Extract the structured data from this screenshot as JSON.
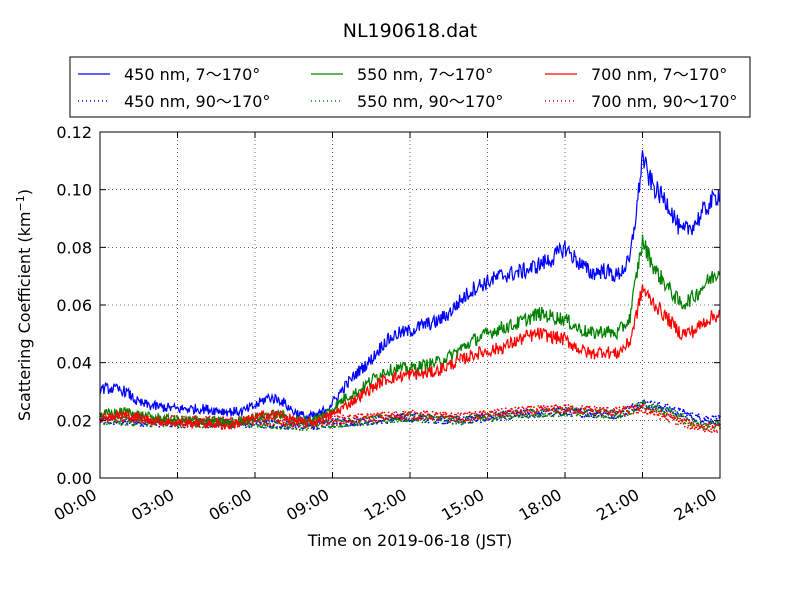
{
  "chart_data": {
    "type": "line",
    "title": "NL190618.dat",
    "xlabel": "Time on 2019-06-18 (JST)",
    "ylabel_main": "Scattering Coefficient (km",
    "ylabel_sup": "−1",
    "ylabel_close": ")",
    "xlim": [
      0,
      24
    ],
    "ylim": [
      0,
      0.12
    ],
    "x_ticks": [
      {
        "value": 0,
        "label": "00:00"
      },
      {
        "value": 3,
        "label": "03:00"
      },
      {
        "value": 6,
        "label": "06:00"
      },
      {
        "value": 9,
        "label": "09:00"
      },
      {
        "value": 12,
        "label": "12:00"
      },
      {
        "value": 15,
        "label": "15:00"
      },
      {
        "value": 18,
        "label": "18:00"
      },
      {
        "value": 21,
        "label": "21:00"
      },
      {
        "value": 24,
        "label": "24:00"
      }
    ],
    "y_ticks": [
      {
        "value": 0,
        "label": "0.00"
      },
      {
        "value": 0.02,
        "label": "0.02"
      },
      {
        "value": 0.04,
        "label": "0.04"
      },
      {
        "value": 0.06,
        "label": "0.06"
      },
      {
        "value": 0.08,
        "label": "0.08"
      },
      {
        "value": 0.1,
        "label": "0.10"
      },
      {
        "value": 0.12,
        "label": "0.12"
      }
    ],
    "grid": true,
    "legend_position": "top",
    "series": [
      {
        "name": "450 nm, 7～170°",
        "color": "#0000ff",
        "style": "solid",
        "x": [
          0,
          0.5,
          1,
          1.5,
          2,
          3,
          4,
          5,
          5.5,
          6,
          6.5,
          7,
          7.5,
          8,
          8.5,
          9,
          9.5,
          10,
          10.5,
          11,
          11.5,
          12,
          12.5,
          13,
          13.5,
          14,
          14.5,
          15,
          15.5,
          16,
          16.5,
          17,
          17.5,
          18,
          18.5,
          19,
          19.5,
          20,
          20.5,
          20.8,
          21,
          21.2,
          21.5,
          22,
          22.5,
          23,
          23.5,
          24
        ],
        "y": [
          0.031,
          0.031,
          0.03,
          0.026,
          0.025,
          0.024,
          0.024,
          0.023,
          0.023,
          0.025,
          0.028,
          0.027,
          0.023,
          0.021,
          0.022,
          0.026,
          0.032,
          0.037,
          0.041,
          0.047,
          0.05,
          0.051,
          0.053,
          0.054,
          0.057,
          0.062,
          0.066,
          0.068,
          0.07,
          0.071,
          0.072,
          0.074,
          0.076,
          0.08,
          0.075,
          0.071,
          0.072,
          0.07,
          0.075,
          0.095,
          0.112,
          0.105,
          0.1,
          0.095,
          0.085,
          0.088,
          0.094,
          0.099
        ]
      },
      {
        "name": "550 nm, 7～170°",
        "color": "#008000",
        "style": "solid",
        "x": [
          0,
          1,
          2,
          3,
          4,
          5,
          6,
          6.5,
          7,
          7.5,
          8,
          8.5,
          9,
          9.5,
          10,
          10.5,
          11,
          11.5,
          12,
          12.5,
          13,
          13.5,
          14,
          14.5,
          15,
          15.5,
          16,
          16.5,
          17,
          17.5,
          18,
          18.5,
          19,
          19.5,
          20,
          20.5,
          20.8,
          21,
          21.2,
          21.5,
          22,
          22.5,
          23,
          23.5,
          24
        ],
        "y": [
          0.022,
          0.023,
          0.021,
          0.02,
          0.02,
          0.019,
          0.021,
          0.022,
          0.022,
          0.02,
          0.02,
          0.021,
          0.024,
          0.028,
          0.03,
          0.034,
          0.037,
          0.038,
          0.038,
          0.039,
          0.04,
          0.042,
          0.045,
          0.048,
          0.05,
          0.052,
          0.053,
          0.055,
          0.057,
          0.056,
          0.055,
          0.052,
          0.05,
          0.051,
          0.05,
          0.055,
          0.072,
          0.082,
          0.078,
          0.072,
          0.066,
          0.06,
          0.063,
          0.068,
          0.072
        ]
      },
      {
        "name": "700 nm, 7～170°",
        "color": "#ff0000",
        "style": "solid",
        "x": [
          0,
          1,
          2,
          3,
          4,
          5,
          6,
          6.5,
          7,
          7.5,
          8,
          8.5,
          9,
          9.5,
          10,
          10.5,
          11,
          11.5,
          12,
          12.5,
          13,
          13.5,
          14,
          14.5,
          15,
          15.5,
          16,
          16.5,
          17,
          17.5,
          18,
          18.5,
          19,
          19.5,
          20,
          20.5,
          20.8,
          21,
          21.2,
          21.5,
          22,
          22.5,
          23,
          23.5,
          24
        ],
        "y": [
          0.021,
          0.022,
          0.02,
          0.019,
          0.019,
          0.018,
          0.021,
          0.022,
          0.022,
          0.02,
          0.019,
          0.02,
          0.022,
          0.025,
          0.028,
          0.031,
          0.034,
          0.035,
          0.036,
          0.036,
          0.037,
          0.039,
          0.041,
          0.043,
          0.044,
          0.045,
          0.047,
          0.049,
          0.05,
          0.049,
          0.048,
          0.045,
          0.043,
          0.044,
          0.043,
          0.047,
          0.058,
          0.066,
          0.063,
          0.06,
          0.055,
          0.05,
          0.051,
          0.055,
          0.057
        ]
      },
      {
        "name": "450 nm, 90～170°",
        "color": "#0000ff",
        "style": "dotted",
        "x": [
          0,
          3,
          6,
          8,
          9,
          12,
          14,
          16,
          18,
          20,
          21,
          22,
          23,
          24
        ],
        "y": [
          0.02,
          0.019,
          0.019,
          0.018,
          0.019,
          0.021,
          0.02,
          0.022,
          0.023,
          0.022,
          0.026,
          0.024,
          0.021,
          0.02
        ]
      },
      {
        "name": "550 nm, 90～170°",
        "color": "#008000",
        "style": "dotted",
        "x": [
          0,
          3,
          6,
          8,
          9,
          12,
          14,
          16,
          18,
          20,
          21,
          22,
          23,
          24
        ],
        "y": [
          0.02,
          0.019,
          0.019,
          0.018,
          0.019,
          0.021,
          0.02,
          0.022,
          0.023,
          0.022,
          0.025,
          0.023,
          0.019,
          0.018
        ]
      },
      {
        "name": "700 nm, 90～170°",
        "color": "#ff0000",
        "style": "dotted",
        "x": [
          0,
          3,
          6,
          8,
          9,
          12,
          14,
          16,
          18,
          20,
          21,
          22,
          23,
          24
        ],
        "y": [
          0.021,
          0.02,
          0.02,
          0.019,
          0.02,
          0.022,
          0.021,
          0.023,
          0.024,
          0.023,
          0.024,
          0.021,
          0.018,
          0.017
        ]
      }
    ],
    "legend_order": [
      0,
      1,
      2,
      3,
      4,
      5
    ]
  }
}
